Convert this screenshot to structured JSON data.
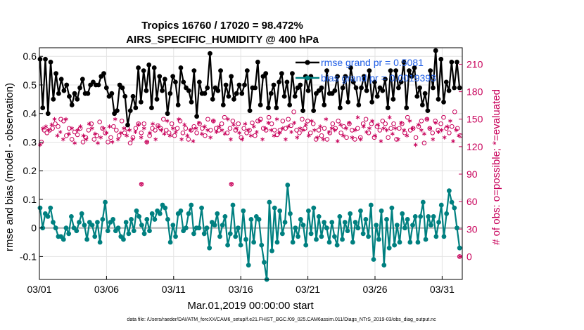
{
  "chart_data": {
    "type": "line",
    "title_line1": "Tropics 16760 / 17020 = 98.472%",
    "title_line2": "AIRS_SPECIFIC_HUMIDITY @ 400 hPa",
    "xlabel": "Mar.01,2019 00:00:00 start",
    "ylabel_left": "rmse and bias (model - observation)",
    "ylabel_right": "# of obs: o=possible; *=evaluated",
    "x_ticks": [
      "03/01",
      "03/06",
      "03/11",
      "03/16",
      "03/21",
      "03/26",
      "03/31"
    ],
    "x_tick_days": [
      1,
      6,
      11,
      16,
      21,
      26,
      31
    ],
    "xlim": [
      1,
      32.5
    ],
    "ylim_left": [
      -0.18,
      0.63
    ],
    "yticks_left": [
      "0.6",
      "0.5",
      "0.4",
      "0.3",
      "0.2",
      "0.1",
      "0",
      "-0.1"
    ],
    "ytick_left_values": [
      0.6,
      0.5,
      0.4,
      0.3,
      0.2,
      0.1,
      0,
      -0.1
    ],
    "ylim_right": [
      -25,
      228
    ],
    "yticks_right": [
      "210",
      "180",
      "150",
      "120",
      "90",
      "60",
      "30",
      "0"
    ],
    "ytick_right_values": [
      210,
      180,
      150,
      120,
      90,
      60,
      30,
      0
    ],
    "legend": [
      {
        "label": "rmse grand pr = 0.5081",
        "color": "#000000"
      },
      {
        "label": "bias grand pr = 0.0019393",
        "color": "#008080"
      }
    ],
    "colors": {
      "rmse": "#000000",
      "bias": "#008080",
      "counts": "#c8005a",
      "zero_line": "#bdbdbd"
    },
    "series": [
      {
        "name": "rmse",
        "values": [
          0.59,
          0.42,
          0.59,
          0.4,
          0.58,
          0.45,
          0.54,
          0.47,
          0.52,
          0.48,
          0.5,
          0.46,
          0.43,
          0.47,
          0.45,
          0.49,
          0.52,
          0.47,
          0.47,
          0.5,
          0.51,
          0.5,
          0.5,
          0.53,
          0.54,
          0.49,
          0.46,
          0.47,
          0.4,
          0.41,
          0.5,
          0.49,
          0.46,
          0.36,
          0.41,
          0.46,
          0.42,
          0.56,
          0.44,
          0.55,
          0.48,
          0.57,
          0.42,
          0.56,
          0.45,
          0.53,
          0.48,
          0.52,
          0.4,
          0.47,
          0.53,
          0.51,
          0.43,
          0.56,
          0.51,
          0.49,
          0.48,
          0.44,
          0.55,
          0.39,
          0.51,
          0.47,
          0.47,
          0.49,
          0.61,
          0.45,
          0.49,
          0.48,
          0.55,
          0.43,
          0.5,
          0.46,
          0.53,
          0.45,
          0.47,
          0.5,
          0.47,
          0.5,
          0.55,
          0.41,
          0.49,
          0.49,
          0.58,
          0.43,
          0.53,
          0.54,
          0.42,
          0.47,
          0.5,
          0.42,
          0.51,
          0.54,
          0.46,
          0.51,
          0.43,
          0.54,
          0.46,
          0.49,
          0.5,
          0.41,
          0.53,
          0.48,
          0.53,
          0.41,
          0.47,
          0.48,
          0.49,
          0.43,
          0.55,
          0.47,
          0.47,
          0.48,
          0.53,
          0.42,
          0.49,
          0.53,
          0.44,
          0.56,
          0.51,
          0.49,
          0.43,
          0.49,
          0.53,
          0.48,
          0.55,
          0.44,
          0.51,
          0.46,
          0.49,
          0.48,
          0.52,
          0.42,
          0.55,
          0.45,
          0.55,
          0.49,
          0.51,
          0.58,
          0.42,
          0.55,
          0.53,
          0.56,
          0.46,
          0.49,
          0.43,
          0.47,
          0.41,
          0.55,
          0.49,
          0.62,
          0.45,
          0.59,
          0.44,
          0.51,
          0.48,
          0.58,
          0.49,
          0.58,
          0.49
        ]
      },
      {
        "name": "bias",
        "values": [
          0.07,
          0.0,
          0.05,
          0.04,
          0.07,
          0.02,
          0.0,
          -0.03,
          -0.03,
          -0.04,
          0.0,
          -0.02,
          0.04,
          0.0,
          -0.01,
          0.02,
          0.05,
          0.01,
          -0.04,
          0.02,
          0.01,
          -0.03,
          0.02,
          -0.05,
          0.03,
          0.09,
          -0.01,
          0.02,
          0.03,
          -0.01,
          0.0,
          -0.03,
          -0.04,
          0.02,
          -0.02,
          0.03,
          -0.01,
          0.06,
          0.04,
          0.01,
          -0.02,
          0.03,
          -0.01,
          0.05,
          0.03,
          0.06,
          0.05,
          0.08,
          0.07,
          0.03,
          -0.05,
          0.01,
          -0.03,
          0.05,
          0.06,
          -0.01,
          0.0,
          0.05,
          0.08,
          -0.02,
          0.0,
          0.0,
          0.07,
          -0.02,
          0.0,
          -0.07,
          0.02,
          0.01,
          0.05,
          -0.03,
          0.01,
          0.04,
          -0.06,
          -0.02,
          0.08,
          -0.03,
          0.0,
          -0.06,
          0.06,
          -0.04,
          -0.13,
          0.03,
          -0.05,
          0.04,
          0.03,
          -0.06,
          -0.12,
          -0.18,
          0.09,
          -0.08,
          0.07,
          -0.05,
          0.06,
          -0.02,
          0.02,
          0.15,
          0.05,
          -0.05,
          0.0,
          -0.03,
          0.03,
          0.01,
          -0.06,
          0.06,
          -0.02,
          0.07,
          -0.04,
          0.04,
          -0.03,
          0.02,
          0.0,
          -0.05,
          0.02,
          -0.03,
          -0.06,
          0.04,
          -0.04,
          0.02,
          -0.01,
          0.05,
          -0.05,
          0.02,
          0.0,
          0.06,
          -0.02,
          0.03,
          -0.03,
          0.08,
          -0.11,
          0.01,
          -0.04,
          0.06,
          -0.13,
          0.03,
          -0.07,
          0.07,
          -0.06,
          0.01,
          -0.05,
          0.05,
          0.0,
          0.03,
          -0.05,
          0.01,
          0.04,
          -0.05,
          0.04,
          0.09,
          -0.04,
          0.04,
          0.01,
          0.04,
          -0.03,
          0.02,
          0.08,
          -0.03,
          0.05,
          0.13,
          0.09,
          0.07,
          0.0,
          -0.07
        ]
      },
      {
        "name": "possible_obs",
        "values": [
          125,
          138,
          135,
          138,
          140,
          145,
          142,
          150,
          148,
          132,
          140,
          128,
          136,
          133,
          140,
          125,
          130,
          138,
          145,
          128,
          132,
          147,
          140,
          135,
          125,
          130,
          142,
          138,
          132,
          148,
          135,
          140,
          124,
          130,
          140,
          145,
          135,
          145,
          125,
          132,
          140,
          138,
          143,
          140,
          150,
          138,
          135,
          145,
          132,
          140,
          148,
          135,
          140,
          128,
          138,
          142,
          135,
          145,
          140,
          132,
          150,
          138,
          148,
          140,
          138,
          145,
          152,
          135,
          140,
          148,
          138,
          145,
          130,
          140,
          135,
          138,
          146,
          132,
          148,
          150,
          140,
          138,
          152,
          145,
          138,
          133,
          138,
          148,
          140,
          150,
          143,
          158,
          138,
          135,
          150,
          140,
          148,
          135,
          145,
          128,
          138,
          132,
          140,
          128,
          135,
          145,
          140,
          148,
          135,
          142,
          130,
          145,
          138,
          128,
          140,
          130,
          145,
          150,
          135,
          145,
          130,
          142,
          138,
          148,
          145,
          130,
          140,
          145,
          128,
          140,
          145,
          135,
          152,
          138,
          140,
          130,
          142,
          148,
          124,
          150,
          140,
          135,
          148,
          138,
          145,
          152,
          140,
          135,
          142,
          158,
          140,
          132
        ]
      },
      {
        "name": "evaluated_obs",
        "values": [
          122,
          140,
          142,
          138,
          144,
          150,
          132,
          136,
          128,
          150,
          134,
          140,
          124,
          138,
          142,
          132,
          128,
          145,
          140,
          134,
          124,
          130,
          140,
          135,
          142,
          125,
          150,
          128,
          135,
          140,
          132,
          138,
          128,
          136,
          144,
          130,
          140,
          125,
          135,
          145,
          128,
          142,
          138,
          134,
          148,
          132,
          140,
          136,
          150,
          128,
          144,
          132,
          138,
          126,
          140,
          146,
          134,
          142,
          138,
          130,
          148,
          136,
          142,
          138,
          134,
          150,
          128,
          144,
          140,
          135,
          128,
          145,
          138,
          132,
          142,
          136,
          148,
          128,
          140,
          146,
          138,
          132,
          150,
          135,
          140,
          128,
          142,
          136,
          146,
          130,
          140,
          138,
          144,
          132,
          148,
          138,
          130,
          142,
          128,
          150,
          136,
          140,
          138,
          126,
          144,
          132,
          140,
          146,
          130,
          138,
          152,
          128,
          142,
          136,
          140,
          148,
          132,
          144,
          126,
          140,
          138,
          152,
          134,
          140,
          128,
          146,
          138,
          132,
          148,
          140,
          122,
          144,
          138,
          134,
          150,
          140,
          128,
          146,
          136,
          138,
          130,
          142,
          148,
          126,
          138,
          132
        ]
      },
      {
        "name": "outlier_evaluated_obs",
        "points": [
          {
            "day": 8.6,
            "value": 79
          },
          {
            "day": 15.3,
            "value": 79
          },
          {
            "day": 32.3,
            "value": 0
          }
        ]
      }
    ],
    "grid": true,
    "legend_position": "top-right"
  },
  "footer": "data file: /Users/raeder/DAI/ATM_forcXX/CAM6_setup/f.e21.FHIST_BGC.f09_025.CAM6assim.011/Diags_NTrS_2019-03/obs_diag_output.nc"
}
